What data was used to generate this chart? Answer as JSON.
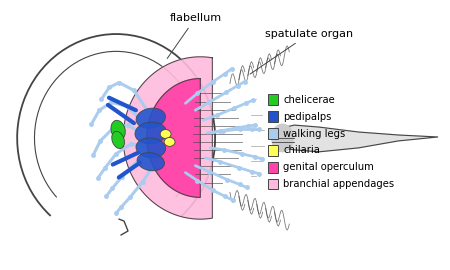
{
  "background_color": "#ffffff",
  "labels": {
    "flabellum": "flabellum",
    "spatulate_organ": "spatulate organ"
  },
  "legend_items": [
    {
      "label": "chelicerae",
      "color": "#22cc22"
    },
    {
      "label": "pedipalps",
      "color": "#2255cc"
    },
    {
      "label": "walking legs",
      "color": "#aaccee"
    },
    {
      "label": "chilaria",
      "color": "#ffff55"
    },
    {
      "label": "genital operculum",
      "color": "#ff44aa"
    },
    {
      "label": "branchial appendages",
      "color": "#ffbbdd"
    }
  ],
  "shell_color": "#cccccc",
  "line_color": "#444444",
  "light_blue": "#aaccee",
  "dark_blue": "#2255cc",
  "green": "#22cc22",
  "pink_bright": "#ff44aa",
  "pink_light": "#ffbbdd",
  "yellow": "#ffff55",
  "gray": "#bbbbbb"
}
